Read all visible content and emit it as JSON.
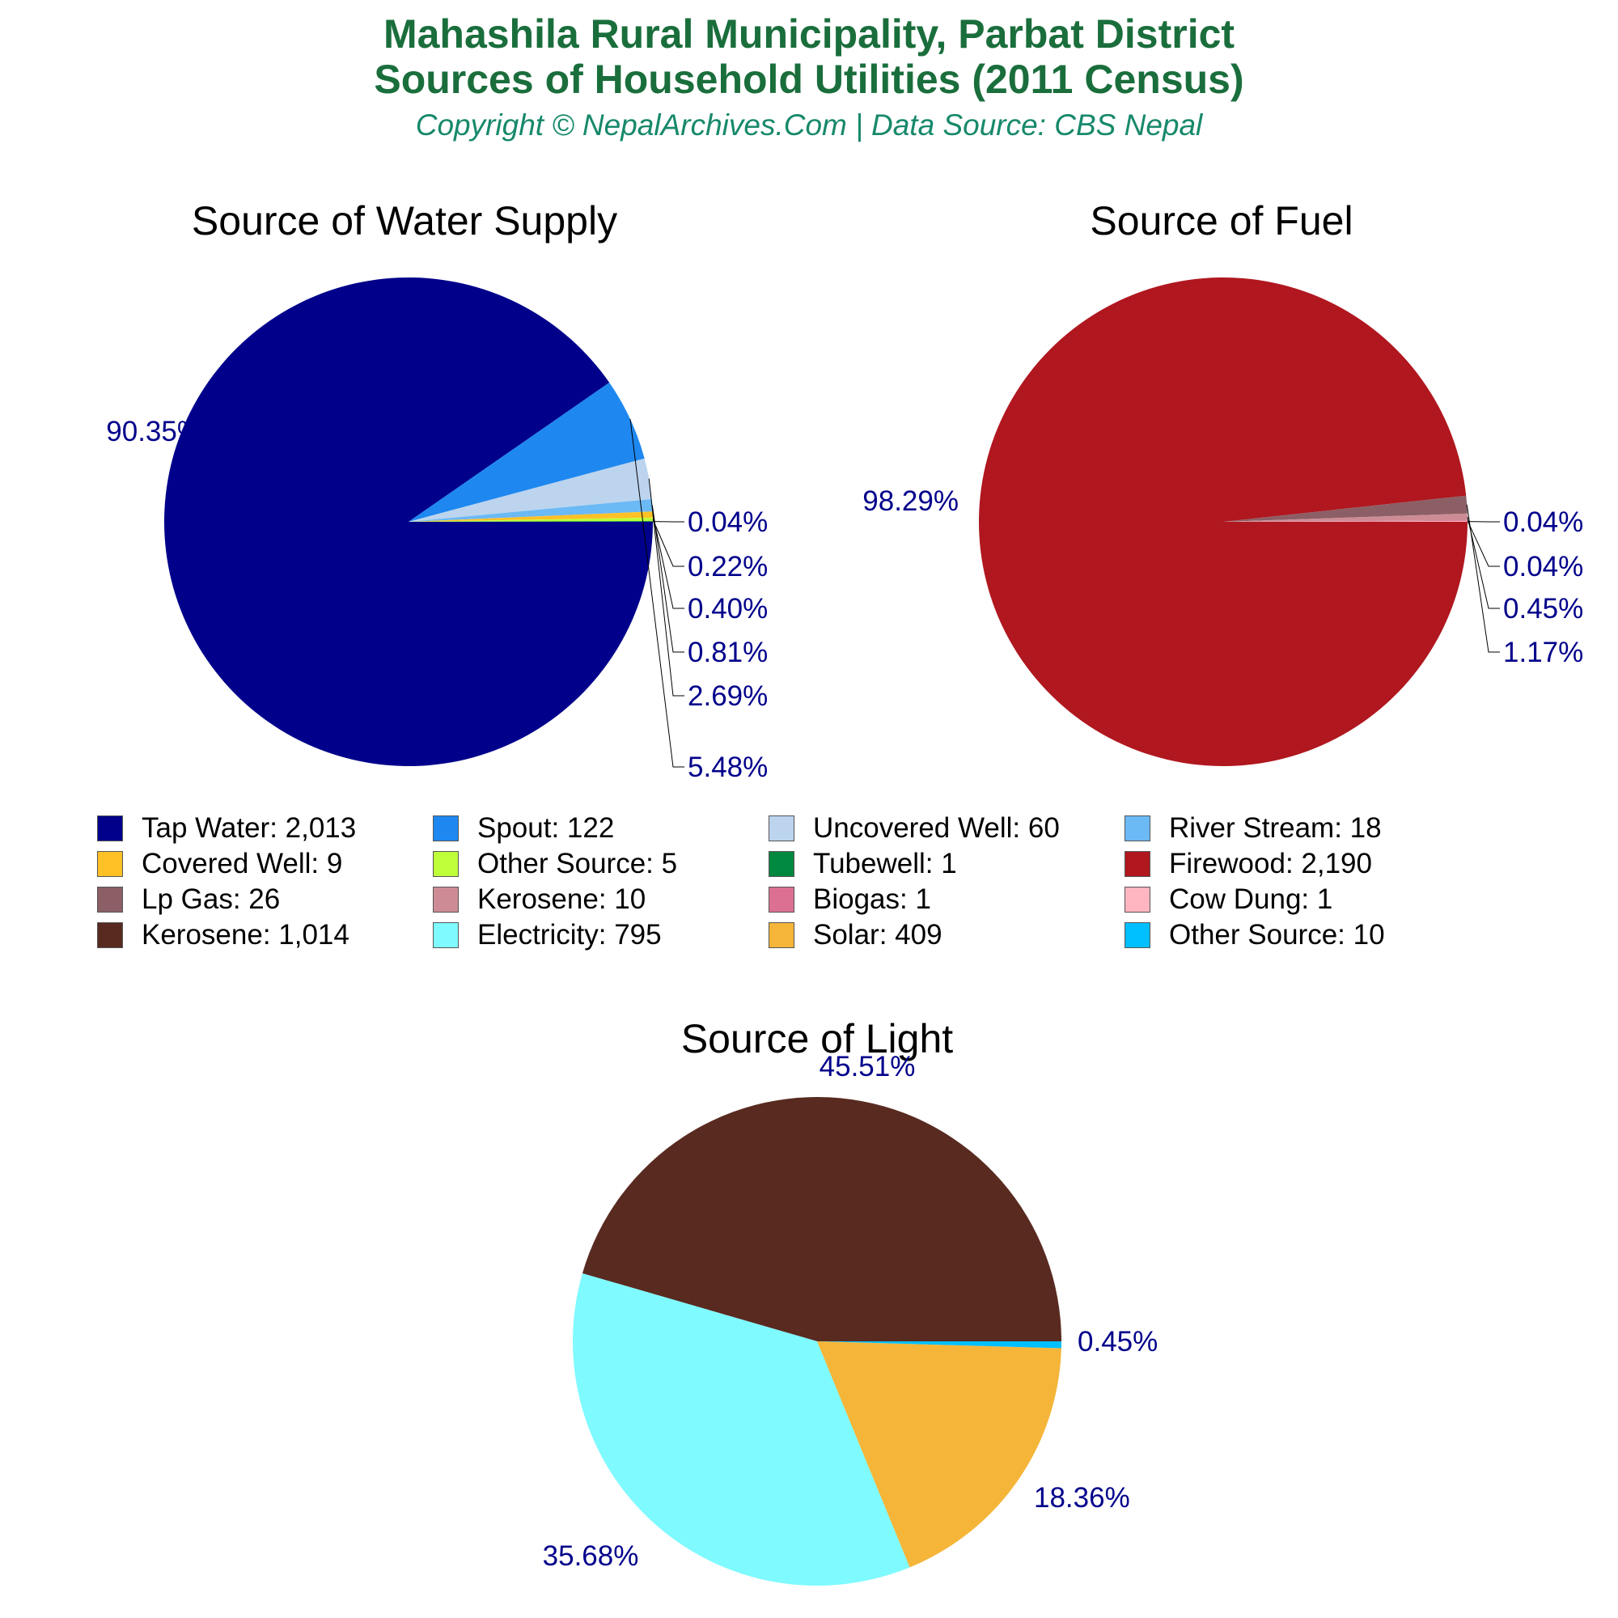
{
  "header": {
    "title_line1": "Mahashila Rural Municipality, Parbat District",
    "title_line2": "Sources of Household Utilities (2011 Census)",
    "subtitle": "Copyright © NepalArchives.Com | Data Source: CBS Nepal"
  },
  "colors": {
    "title": "#1a6e3c",
    "subtitle": "#17896b",
    "pct_label": "#00008b"
  },
  "chart_data": [
    {
      "type": "pie",
      "title": "Source of Water Supply",
      "slices": [
        {
          "name": "Tap Water",
          "value": 2013,
          "pct": "90.35%",
          "color": "#00008b"
        },
        {
          "name": "Spout",
          "value": 122,
          "pct": "5.48%",
          "color": "#1e88f0"
        },
        {
          "name": "Uncovered Well",
          "value": 60,
          "pct": "2.69%",
          "color": "#bcd4ee"
        },
        {
          "name": "River Stream",
          "value": 18,
          "pct": "0.81%",
          "color": "#6bb9f5"
        },
        {
          "name": "Covered Well",
          "value": 9,
          "pct": "0.40%",
          "color": "#ffc125"
        },
        {
          "name": "Other Source",
          "value": 5,
          "pct": "0.22%",
          "color": "#bfff3a"
        },
        {
          "name": "Tubewell",
          "value": 1,
          "pct": "0.04%",
          "color": "#00883e"
        }
      ]
    },
    {
      "type": "pie",
      "title": "Source of Fuel",
      "slices": [
        {
          "name": "Firewood",
          "value": 2190,
          "pct": "98.29%",
          "color": "#b0171f"
        },
        {
          "name": "Lp Gas",
          "value": 26,
          "pct": "1.17%",
          "color": "#8b5f65"
        },
        {
          "name": "Kerosene",
          "value": 10,
          "pct": "0.45%",
          "color": "#cd8c95"
        },
        {
          "name": "Biogas",
          "value": 1,
          "pct": "0.04%",
          "color": "#db7093"
        },
        {
          "name": "Cow Dung",
          "value": 1,
          "pct": "0.04%",
          "color": "#ffb6c1"
        }
      ]
    },
    {
      "type": "pie",
      "title": "Source of Light",
      "slices": [
        {
          "name": "Kerosene",
          "value": 1014,
          "pct": "45.51%",
          "color": "#582a20"
        },
        {
          "name": "Electricity",
          "value": 795,
          "pct": "35.68%",
          "color": "#7ffaff"
        },
        {
          "name": "Solar",
          "value": 409,
          "pct": "18.36%",
          "color": "#f5b538"
        },
        {
          "name": "Other Source",
          "value": 10,
          "pct": "0.45%",
          "color": "#00bfff"
        }
      ]
    }
  ],
  "legend": [
    {
      "label": "Tap Water: 2,013",
      "color": "#00008b"
    },
    {
      "label": "Spout: 122",
      "color": "#1e88f0"
    },
    {
      "label": "Uncovered Well: 60",
      "color": "#bcd4ee"
    },
    {
      "label": "River Stream: 18",
      "color": "#6bb9f5"
    },
    {
      "label": "Covered Well: 9",
      "color": "#ffc125"
    },
    {
      "label": "Other Source: 5",
      "color": "#bfff3a"
    },
    {
      "label": "Tubewell: 1",
      "color": "#00883e"
    },
    {
      "label": "Firewood: 2,190",
      "color": "#b0171f"
    },
    {
      "label": "Lp Gas: 26",
      "color": "#8b5f65"
    },
    {
      "label": "Kerosene: 10",
      "color": "#cd8c95"
    },
    {
      "label": "Biogas: 1",
      "color": "#db7093"
    },
    {
      "label": "Cow Dung: 1",
      "color": "#ffb6c1"
    },
    {
      "label": "Kerosene: 1,014",
      "color": "#582a20"
    },
    {
      "label": "Electricity: 795",
      "color": "#7ffaff"
    },
    {
      "label": "Solar: 409",
      "color": "#f5b538"
    },
    {
      "label": "Other Source: 10",
      "color": "#00bfff"
    }
  ]
}
